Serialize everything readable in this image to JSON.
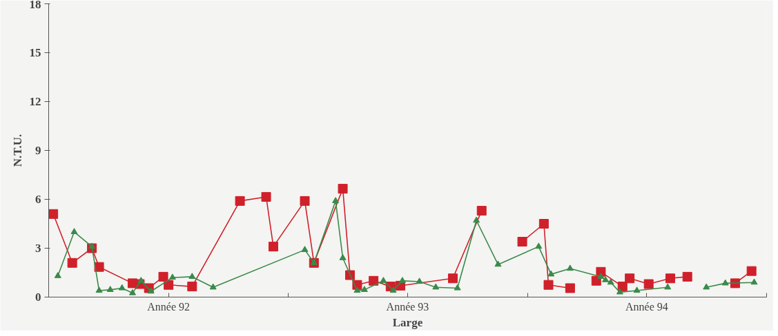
{
  "chart_data": {
    "type": "line",
    "xlabel": "Large",
    "ylabel": "N.T.U.",
    "xlim": [
      "1992-01-01",
      "1995-01-01"
    ],
    "ylim": [
      0,
      18
    ],
    "yticks": [
      0,
      3,
      6,
      9,
      12,
      15,
      18
    ],
    "xticks": [
      {
        "value": "1992-01-01",
        "label": null
      },
      {
        "value": "1992-07-02",
        "label": "Année 92"
      },
      {
        "value": "1993-01-01",
        "label": null
      },
      {
        "value": "1993-07-02",
        "label": "Année 93"
      },
      {
        "value": "1994-01-01",
        "label": null
      },
      {
        "value": "1994-07-02",
        "label": "Année 94"
      },
      {
        "value": "1995-01-01",
        "label": null
      }
    ],
    "grid": false,
    "series": [
      {
        "color": "#d0202a",
        "marker": "square",
        "x": [
          "1992-01-08",
          "1992-02-06",
          "1992-03-07",
          "1992-03-18",
          "1992-05-08",
          "1992-05-19",
          "1992-06-02",
          "1992-06-24",
          "1992-07-02",
          "1992-08-07",
          "1992-10-19",
          "1992-11-28",
          "1992-12-09",
          "1993-01-26",
          "1993-02-09",
          "1993-03-25",
          "1993-04-05",
          "1993-04-16",
          "1993-05-11",
          "1993-06-06",
          "1993-06-21",
          "1993-09-09",
          "1993-10-23",
          "1993-11-25",
          "1993-12-24",
          "1994-01-26",
          "1994-02-02",
          "1994-03-07",
          "1994-03-25",
          "1994-04-16",
          "1994-04-23",
          "1994-05-26",
          "1994-06-06",
          "1994-07-05",
          "1994-08-07",
          "1994-09-02",
          "1994-09-23",
          "1994-11-14",
          "1994-12-09"
        ],
        "values": [
          5.1,
          2.1,
          3.0,
          1.85,
          0.85,
          0.8,
          0.55,
          1.25,
          0.75,
          0.65,
          5.9,
          6.15,
          3.1,
          5.9,
          2.1,
          6.65,
          1.35,
          0.75,
          1.0,
          0.65,
          0.7,
          1.15,
          5.3,
          null,
          3.4,
          4.5,
          0.75,
          0.55,
          null,
          1.0,
          1.55,
          0.65,
          1.15,
          0.8,
          1.15,
          1.25,
          null,
          0.85,
          1.6
        ]
      },
      {
        "color": "#3a8a4a",
        "marker": "triangle",
        "x": [
          "1992-01-15",
          "1992-02-09",
          "1992-03-07",
          "1992-03-18",
          "1992-04-04",
          "1992-04-22",
          "1992-05-08",
          "1992-05-21",
          "1992-06-05",
          "1992-07-08",
          "1992-08-07",
          "1992-09-08",
          "1993-01-26",
          "1993-02-09",
          "1993-03-14",
          "1993-03-25",
          "1993-04-16",
          "1993-04-27",
          "1993-05-26",
          "1993-06-10",
          "1993-06-24",
          "1993-07-20",
          "1993-08-14",
          "1993-09-16",
          "1993-10-15",
          "1993-11-17",
          "1994-01-18",
          "1994-02-06",
          "1994-03-07",
          "1994-04-23",
          "1994-04-30",
          "1994-05-08",
          "1994-05-22",
          "1994-06-17",
          "1994-08-03",
          "1994-09-05",
          "1994-10-01",
          "1994-10-30",
          "1994-12-13"
        ],
        "values": [
          1.3,
          4.0,
          3.1,
          0.4,
          0.45,
          0.55,
          0.25,
          1.0,
          0.35,
          1.2,
          1.25,
          0.6,
          2.9,
          2.1,
          5.9,
          2.4,
          0.4,
          0.45,
          1.0,
          0.4,
          1.0,
          0.95,
          0.6,
          0.55,
          4.7,
          2.0,
          3.1,
          1.4,
          1.75,
          1.25,
          1.05,
          0.9,
          0.3,
          0.4,
          0.6,
          null,
          0.6,
          0.85,
          0.9
        ]
      }
    ]
  }
}
